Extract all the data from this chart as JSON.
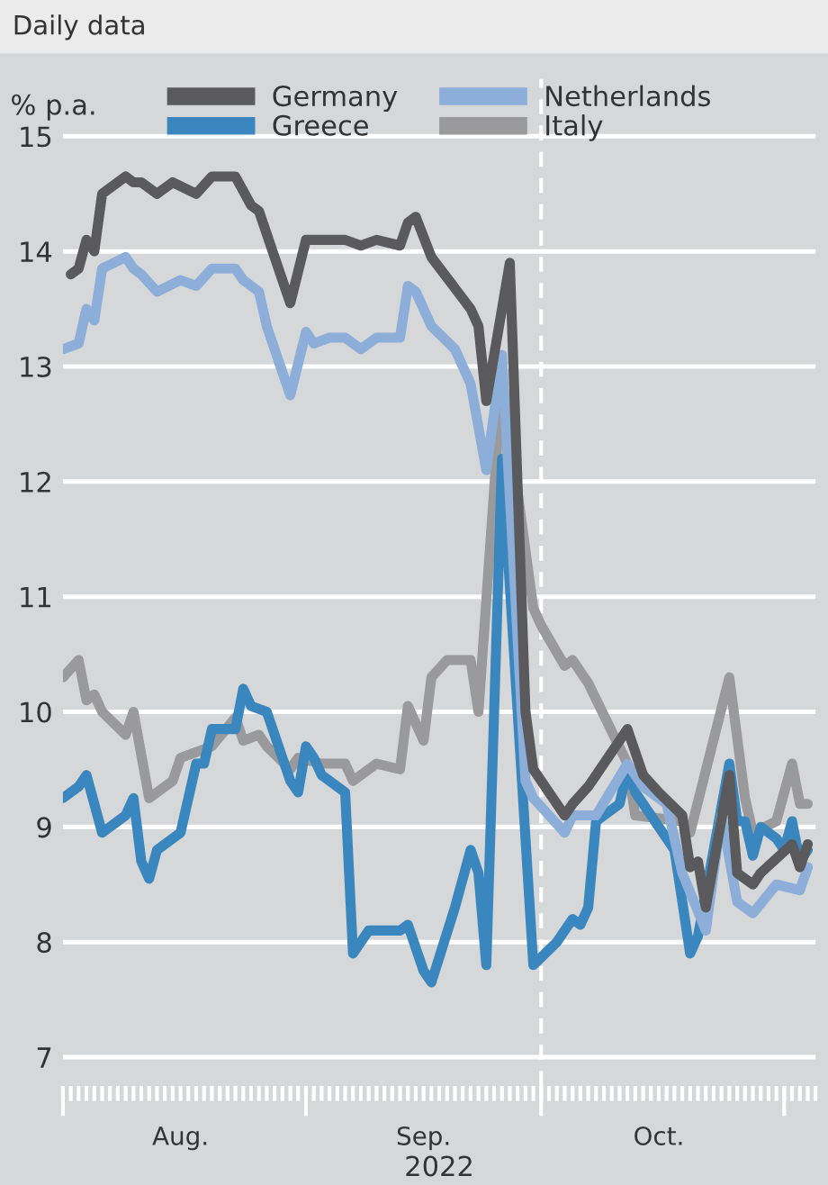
{
  "chart_data": {
    "type": "line",
    "title": "Daily data",
    "ylabel": "% p.a.",
    "xlabel": "2022",
    "xlim": [
      "2022-08-01",
      "2022-11-05"
    ],
    "xticks": [
      {
        "value": "2022-08-16",
        "label": "Aug."
      },
      {
        "value": "2022-09-16",
        "label": "Sep."
      },
      {
        "value": "2022-10-16",
        "label": "Oct."
      }
    ],
    "ylim": [
      6.75,
      15.5
    ],
    "yticks": [
      7,
      8,
      9,
      10,
      11,
      12,
      13,
      14,
      15
    ],
    "grid": "y",
    "legend": "top",
    "line_style": "solid",
    "marker": "none",
    "ref_lines": [
      {
        "axis": "x",
        "value": "2022-10-01",
        "label": null,
        "color": "#ffffff",
        "line_style": "dashed"
      }
    ],
    "series": [
      {
        "name": "Germany",
        "color": "#5a5a5c",
        "x": [
          "2022-08-02",
          "2022-08-03",
          "2022-08-04",
          "2022-08-05",
          "2022-08-06",
          "2022-08-09",
          "2022-08-10",
          "2022-08-11",
          "2022-08-13",
          "2022-08-15",
          "2022-08-18",
          "2022-08-20",
          "2022-08-23",
          "2022-08-25",
          "2022-08-26",
          "2022-08-30",
          "2022-09-01",
          "2022-09-02",
          "2022-09-06",
          "2022-09-08",
          "2022-09-10",
          "2022-09-13",
          "2022-09-14",
          "2022-09-15",
          "2022-09-17",
          "2022-09-22",
          "2022-09-23",
          "2022-09-24",
          "2022-09-27",
          "2022-09-29",
          "2022-09-30",
          "2022-10-04",
          "2022-10-05",
          "2022-10-07",
          "2022-10-12",
          "2022-10-14",
          "2022-10-16",
          "2022-10-19",
          "2022-10-20",
          "2022-10-21",
          "2022-10-22",
          "2022-10-25",
          "2022-10-26",
          "2022-10-28",
          "2022-10-29",
          "2022-11-02",
          "2022-11-03",
          "2022-11-04"
        ],
        "values": [
          13.8,
          13.85,
          14.1,
          14.0,
          14.5,
          14.65,
          14.6,
          14.6,
          14.5,
          14.6,
          14.5,
          14.65,
          14.65,
          14.4,
          14.35,
          13.55,
          14.1,
          14.1,
          14.1,
          14.05,
          14.1,
          14.05,
          14.25,
          14.3,
          13.95,
          13.5,
          13.35,
          12.7,
          13.9,
          10.0,
          9.5,
          9.1,
          9.2,
          9.35,
          9.85,
          9.45,
          9.3,
          9.1,
          8.65,
          8.7,
          8.3,
          9.45,
          8.6,
          8.5,
          8.6,
          8.85,
          8.65,
          8.85
        ]
      },
      {
        "name": "Netherlands",
        "color": "#8caed8",
        "x": [
          "2022-08-01",
          "2022-08-03",
          "2022-08-04",
          "2022-08-05",
          "2022-08-06",
          "2022-08-09",
          "2022-08-10",
          "2022-08-11",
          "2022-08-13",
          "2022-08-16",
          "2022-08-18",
          "2022-08-20",
          "2022-08-23",
          "2022-08-24",
          "2022-08-26",
          "2022-08-27",
          "2022-08-30",
          "2022-09-01",
          "2022-09-02",
          "2022-09-04",
          "2022-09-06",
          "2022-09-08",
          "2022-09-10",
          "2022-09-13",
          "2022-09-14",
          "2022-09-15",
          "2022-09-17",
          "2022-09-20",
          "2022-09-22",
          "2022-09-24",
          "2022-09-26",
          "2022-09-29",
          "2022-09-30",
          "2022-10-04",
          "2022-10-05",
          "2022-10-08",
          "2022-10-12",
          "2022-10-14",
          "2022-10-17",
          "2022-10-19",
          "2022-10-22",
          "2022-10-24",
          "2022-10-26",
          "2022-10-28",
          "2022-10-31",
          "2022-11-03",
          "2022-11-04"
        ],
        "values": [
          13.15,
          13.2,
          13.5,
          13.4,
          13.85,
          13.95,
          13.85,
          13.8,
          13.65,
          13.75,
          13.7,
          13.85,
          13.85,
          13.75,
          13.65,
          13.35,
          12.75,
          13.3,
          13.2,
          13.25,
          13.25,
          13.15,
          13.25,
          13.25,
          13.7,
          13.65,
          13.35,
          13.15,
          12.85,
          12.1,
          13.1,
          9.4,
          9.25,
          8.95,
          9.1,
          9.1,
          9.55,
          9.35,
          9.2,
          8.6,
          8.1,
          9.1,
          8.35,
          8.25,
          8.5,
          8.45,
          8.65
        ]
      },
      {
        "name": "Greece",
        "color": "#3a86be",
        "x": [
          "2022-08-01",
          "2022-08-03",
          "2022-08-04",
          "2022-08-06",
          "2022-08-09",
          "2022-08-10",
          "2022-08-11",
          "2022-08-12",
          "2022-08-13",
          "2022-08-16",
          "2022-08-18",
          "2022-08-19",
          "2022-08-20",
          "2022-08-23",
          "2022-08-24",
          "2022-08-25",
          "2022-08-27",
          "2022-08-30",
          "2022-08-31",
          "2022-09-01",
          "2022-09-02",
          "2022-09-03",
          "2022-09-06",
          "2022-09-07",
          "2022-09-09",
          "2022-09-10",
          "2022-09-13",
          "2022-09-14",
          "2022-09-16",
          "2022-09-17",
          "2022-09-20",
          "2022-09-22",
          "2022-09-23",
          "2022-09-24",
          "2022-09-26",
          "2022-09-30",
          "2022-10-03",
          "2022-10-05",
          "2022-10-06",
          "2022-10-07",
          "2022-10-08",
          "2022-10-11",
          "2022-10-12",
          "2022-10-13",
          "2022-10-18",
          "2022-10-20",
          "2022-10-21",
          "2022-10-25",
          "2022-10-26",
          "2022-10-27",
          "2022-10-28",
          "2022-10-29",
          "2022-10-31",
          "2022-11-01",
          "2022-11-02",
          "2022-11-03",
          "2022-11-04"
        ],
        "values": [
          9.25,
          9.35,
          9.45,
          8.95,
          9.1,
          9.25,
          8.7,
          8.55,
          8.8,
          8.95,
          9.55,
          9.55,
          9.85,
          9.85,
          10.2,
          10.05,
          10.0,
          9.4,
          9.3,
          9.7,
          9.6,
          9.45,
          9.3,
          7.9,
          8.1,
          8.1,
          8.1,
          8.15,
          7.75,
          7.65,
          8.3,
          8.8,
          8.6,
          7.8,
          12.2,
          7.8,
          8.0,
          8.2,
          8.15,
          8.3,
          9.05,
          9.2,
          9.5,
          9.3,
          8.8,
          7.9,
          8.05,
          9.55,
          9.05,
          9.05,
          8.75,
          9.0,
          8.9,
          8.8,
          9.05,
          8.7,
          8.8
        ]
      },
      {
        "name": "Italy",
        "color": "#9a9a9c",
        "x": [
          "2022-08-01",
          "2022-08-03",
          "2022-08-04",
          "2022-08-05",
          "2022-08-06",
          "2022-08-09",
          "2022-08-10",
          "2022-08-12",
          "2022-08-15",
          "2022-08-16",
          "2022-08-18",
          "2022-08-20",
          "2022-08-23",
          "2022-08-24",
          "2022-08-26",
          "2022-08-27",
          "2022-08-30",
          "2022-08-31",
          "2022-09-03",
          "2022-09-06",
          "2022-09-07",
          "2022-09-10",
          "2022-09-13",
          "2022-09-14",
          "2022-09-16",
          "2022-09-17",
          "2022-09-19",
          "2022-09-22",
          "2022-09-23",
          "2022-09-26",
          "2022-09-30",
          "2022-10-01",
          "2022-10-04",
          "2022-10-05",
          "2022-10-07",
          "2022-10-12",
          "2022-10-13",
          "2022-10-19",
          "2022-10-20",
          "2022-10-25",
          "2022-10-27",
          "2022-10-28",
          "2022-10-31",
          "2022-11-02",
          "2022-11-03",
          "2022-11-04"
        ],
        "values": [
          10.3,
          10.45,
          10.1,
          10.15,
          10.0,
          9.8,
          10.0,
          9.25,
          9.4,
          9.6,
          9.65,
          9.7,
          9.95,
          9.75,
          9.8,
          9.7,
          9.5,
          9.6,
          9.55,
          9.55,
          9.4,
          9.55,
          9.5,
          10.05,
          9.75,
          10.3,
          10.45,
          10.45,
          10.0,
          12.9,
          10.9,
          10.75,
          10.4,
          10.45,
          10.25,
          9.55,
          9.1,
          9.05,
          8.95,
          10.3,
          9.25,
          8.95,
          9.05,
          9.55,
          9.2,
          9.2
        ]
      }
    ]
  }
}
